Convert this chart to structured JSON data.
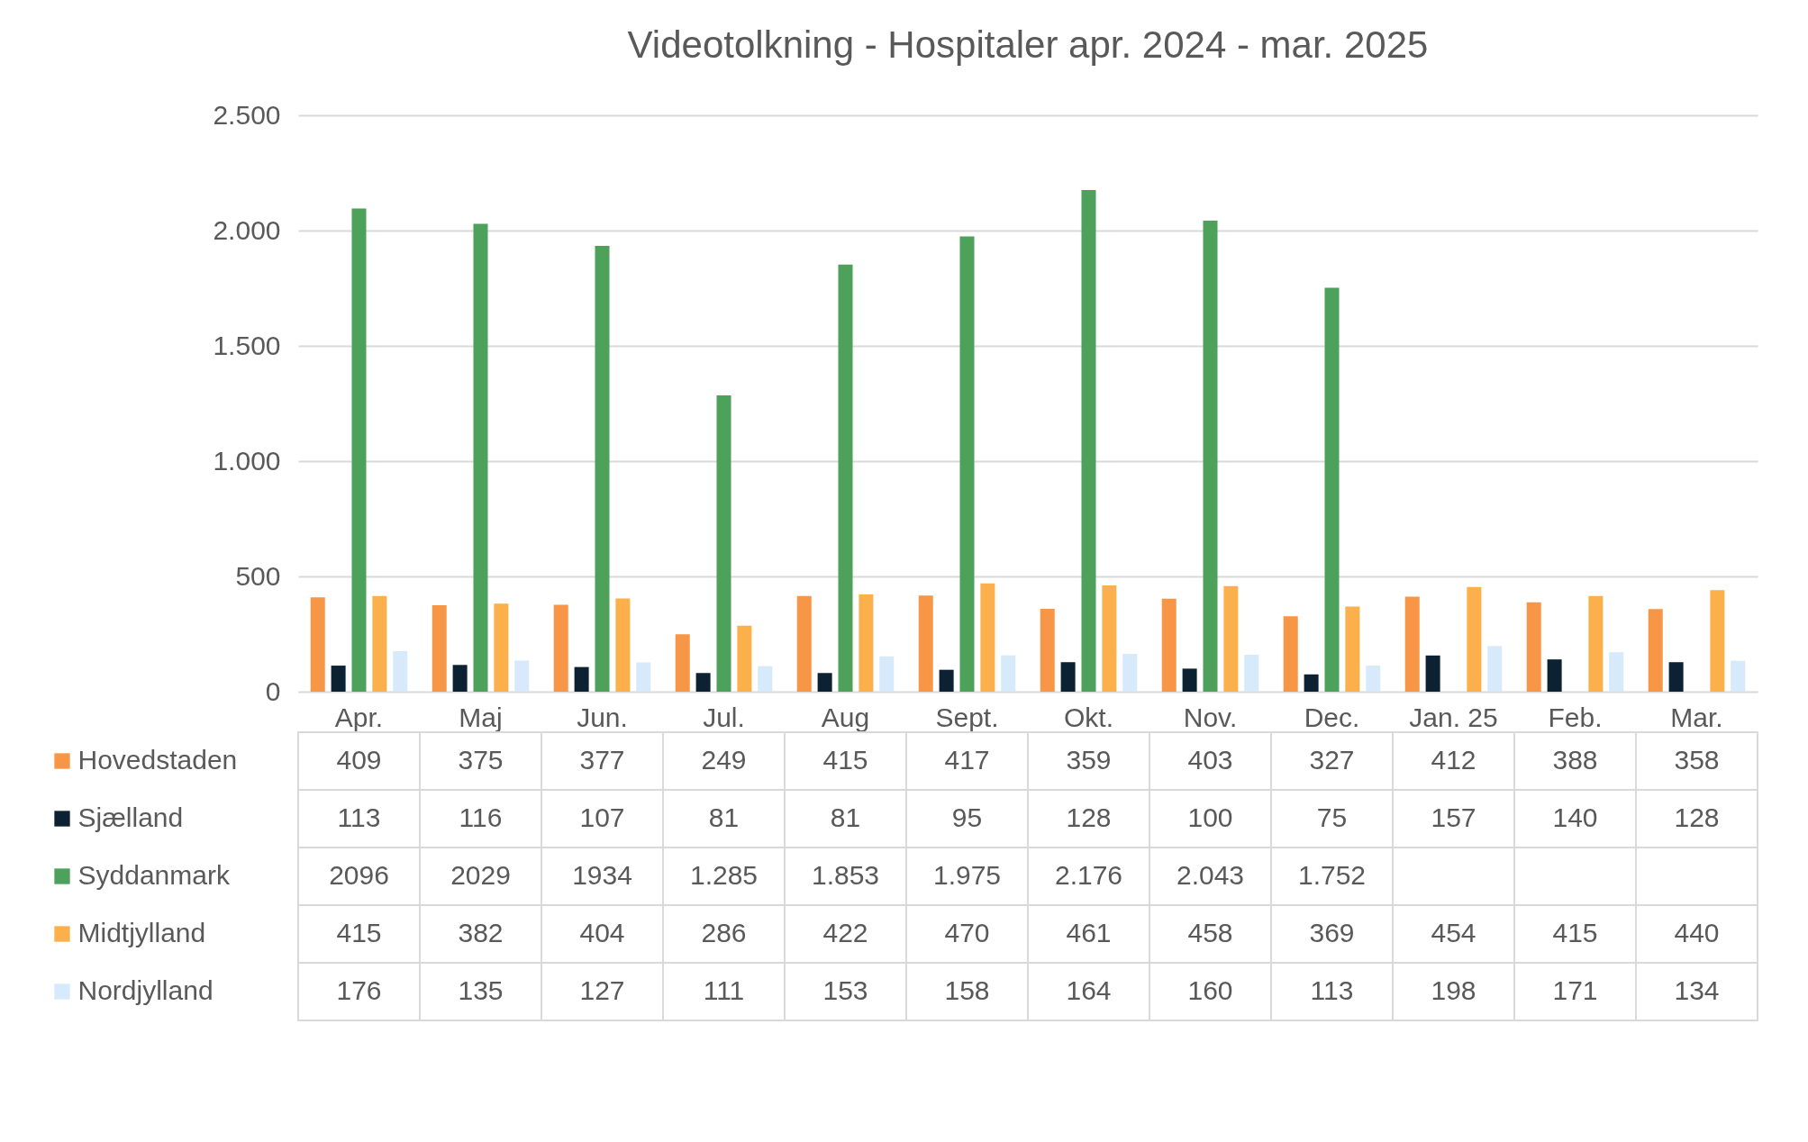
{
  "chart_data": {
    "type": "bar",
    "title": "Videotolkning - Hospitaler apr. 2024 - mar. 2025",
    "categories": [
      "Apr.",
      "Maj",
      "Jun.",
      "Jul.",
      "Aug",
      "Sept.",
      "Okt.",
      "Nov.",
      "Dec.",
      "Jan. 25",
      "Feb.",
      "Mar."
    ],
    "series": [
      {
        "name": "Hovedstaden",
        "color": "#f79646",
        "values": [
          409,
          375,
          377,
          249,
          415,
          417,
          359,
          403,
          327,
          412,
          388,
          358
        ],
        "value_labels": [
          "409",
          "375",
          "377",
          "249",
          "415",
          "417",
          "359",
          "403",
          "327",
          "412",
          "388",
          "358"
        ]
      },
      {
        "name": "Sjælland",
        "color": "#0c2233",
        "values": [
          113,
          116,
          107,
          81,
          81,
          95,
          128,
          100,
          75,
          157,
          140,
          128
        ],
        "value_labels": [
          "113",
          "116",
          "107",
          "81",
          "81",
          "95",
          "128",
          "100",
          "75",
          "157",
          "140",
          "128"
        ]
      },
      {
        "name": "Syddanmark",
        "color": "#4ea15a",
        "values": [
          2096,
          2029,
          1934,
          1285,
          1853,
          1975,
          2176,
          2043,
          1752,
          null,
          null,
          null
        ],
        "value_labels": [
          "2096",
          "2029",
          "1934",
          "1.285",
          "1.853",
          "1.975",
          "2.176",
          "2.043",
          "1.752",
          null,
          null,
          null
        ]
      },
      {
        "name": "Midtjylland",
        "color": "#fbb04b",
        "values": [
          415,
          382,
          404,
          286,
          422,
          470,
          461,
          458,
          369,
          454,
          415,
          440
        ],
        "value_labels": [
          "415",
          "382",
          "404",
          "286",
          "422",
          "470",
          "461",
          "458",
          "369",
          "454",
          "415",
          "440"
        ]
      },
      {
        "name": "Nordjylland",
        "color": "#d6eafb",
        "values": [
          176,
          135,
          127,
          111,
          153,
          158,
          164,
          160,
          113,
          198,
          171,
          134
        ],
        "value_labels": [
          "176",
          "135",
          "127",
          "111",
          "153",
          "158",
          "164",
          "160",
          "113",
          "198",
          "171",
          "134"
        ]
      }
    ],
    "ylim": [
      0,
      2500
    ],
    "yticks": [
      0,
      500,
      {
        "value": 1000,
        "label": "1.000"
      },
      {
        "value": 1500,
        "label": "1.500"
      },
      {
        "value": 2000,
        "label": "2.000"
      },
      {
        "value": 2500,
        "label": "2.500"
      }
    ],
    "grid": "y",
    "legend": "bottom"
  }
}
